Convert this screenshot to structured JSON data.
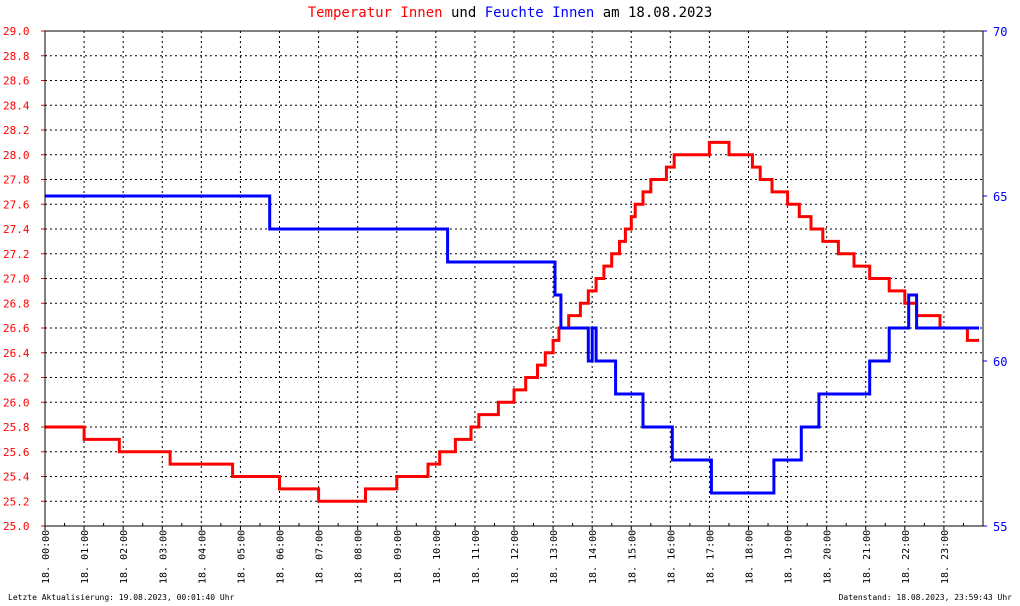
{
  "title": {
    "part1": "Temperatur Innen",
    "part2": " und ",
    "part3": "Feuchte Innen",
    "part4": " am 18.08.2023"
  },
  "footer": {
    "left": "Letzte Aktualisierung: 19.08.2023, 00:01:40 Uhr",
    "right": "Datenstand: 18.08.2023, 23:59:43 Uhr"
  },
  "colors": {
    "temperature": "#ff0000",
    "humidity": "#0000ff",
    "grid": "#000000"
  },
  "chart_data": {
    "type": "line",
    "title": "Temperatur Innen und Feuchte Innen am 18.08.2023",
    "x_tick_labels": [
      "18. 00:00",
      "18. 01:00",
      "18. 02:00",
      "18. 03:00",
      "18. 04:00",
      "18. 05:00",
      "18. 06:00",
      "18. 07:00",
      "18. 08:00",
      "18. 09:00",
      "18. 10:00",
      "18. 11:00",
      "18. 12:00",
      "18. 13:00",
      "18. 14:00",
      "18. 15:00",
      "18. 16:00",
      "18. 17:00",
      "18. 18:00",
      "18. 19:00",
      "18. 20:00",
      "18. 21:00",
      "18. 22:00",
      "18. 23:00"
    ],
    "x_range_hours": [
      0,
      24
    ],
    "y_left": {
      "range": [
        25.0,
        29.0
      ],
      "ticks": [
        "25.0",
        "25.2",
        "25.4",
        "25.6",
        "25.8",
        "26.0",
        "26.2",
        "26.4",
        "26.6",
        "26.8",
        "27.0",
        "27.2",
        "27.4",
        "27.6",
        "27.8",
        "28.0",
        "28.2",
        "28.4",
        "28.6",
        "28.8",
        "29.0"
      ]
    },
    "y_right": {
      "range": [
        55,
        70
      ],
      "ticks": [
        "55",
        "60",
        "65",
        "70"
      ]
    },
    "grid": true,
    "series": [
      {
        "name": "Temperatur Innen",
        "axis": "left",
        "color": "#ff0000",
        "points": [
          [
            0.0,
            25.8
          ],
          [
            1.0,
            25.8
          ],
          [
            1.0,
            25.7
          ],
          [
            1.9,
            25.7
          ],
          [
            1.9,
            25.6
          ],
          [
            3.2,
            25.6
          ],
          [
            3.2,
            25.5
          ],
          [
            4.8,
            25.5
          ],
          [
            4.8,
            25.4
          ],
          [
            6.0,
            25.4
          ],
          [
            6.0,
            25.3
          ],
          [
            7.0,
            25.3
          ],
          [
            7.0,
            25.2
          ],
          [
            8.2,
            25.2
          ],
          [
            8.2,
            25.3
          ],
          [
            9.0,
            25.3
          ],
          [
            9.0,
            25.4
          ],
          [
            9.8,
            25.4
          ],
          [
            9.8,
            25.5
          ],
          [
            10.1,
            25.5
          ],
          [
            10.1,
            25.6
          ],
          [
            10.5,
            25.6
          ],
          [
            10.5,
            25.7
          ],
          [
            10.9,
            25.7
          ],
          [
            10.9,
            25.8
          ],
          [
            11.1,
            25.8
          ],
          [
            11.1,
            25.9
          ],
          [
            11.6,
            25.9
          ],
          [
            11.6,
            26.0
          ],
          [
            12.0,
            26.0
          ],
          [
            12.0,
            26.1
          ],
          [
            12.3,
            26.1
          ],
          [
            12.3,
            26.2
          ],
          [
            12.6,
            26.2
          ],
          [
            12.6,
            26.3
          ],
          [
            12.8,
            26.3
          ],
          [
            12.8,
            26.4
          ],
          [
            13.0,
            26.4
          ],
          [
            13.0,
            26.5
          ],
          [
            13.15,
            26.5
          ],
          [
            13.15,
            26.6
          ],
          [
            13.4,
            26.6
          ],
          [
            13.4,
            26.7
          ],
          [
            13.7,
            26.7
          ],
          [
            13.7,
            26.8
          ],
          [
            13.9,
            26.8
          ],
          [
            13.9,
            26.9
          ],
          [
            14.1,
            26.9
          ],
          [
            14.1,
            27.0
          ],
          [
            14.3,
            27.0
          ],
          [
            14.3,
            27.1
          ],
          [
            14.5,
            27.1
          ],
          [
            14.5,
            27.2
          ],
          [
            14.7,
            27.2
          ],
          [
            14.7,
            27.3
          ],
          [
            14.85,
            27.3
          ],
          [
            14.85,
            27.4
          ],
          [
            15.0,
            27.4
          ],
          [
            15.0,
            27.5
          ],
          [
            15.1,
            27.5
          ],
          [
            15.1,
            27.6
          ],
          [
            15.3,
            27.6
          ],
          [
            15.3,
            27.7
          ],
          [
            15.5,
            27.7
          ],
          [
            15.5,
            27.8
          ],
          [
            15.9,
            27.8
          ],
          [
            15.9,
            27.9
          ],
          [
            16.1,
            27.9
          ],
          [
            16.1,
            28.0
          ],
          [
            17.0,
            28.0
          ],
          [
            17.0,
            28.1
          ],
          [
            17.5,
            28.1
          ],
          [
            17.5,
            28.0
          ],
          [
            18.1,
            28.0
          ],
          [
            18.1,
            27.9
          ],
          [
            18.3,
            27.9
          ],
          [
            18.3,
            27.8
          ],
          [
            18.6,
            27.8
          ],
          [
            18.6,
            27.7
          ],
          [
            19.0,
            27.7
          ],
          [
            19.0,
            27.6
          ],
          [
            19.3,
            27.6
          ],
          [
            19.3,
            27.5
          ],
          [
            19.6,
            27.5
          ],
          [
            19.6,
            27.4
          ],
          [
            19.9,
            27.4
          ],
          [
            19.9,
            27.3
          ],
          [
            20.3,
            27.3
          ],
          [
            20.3,
            27.2
          ],
          [
            20.7,
            27.2
          ],
          [
            20.7,
            27.1
          ],
          [
            21.1,
            27.1
          ],
          [
            21.1,
            27.0
          ],
          [
            21.6,
            27.0
          ],
          [
            21.6,
            26.9
          ],
          [
            22.0,
            26.9
          ],
          [
            22.0,
            26.8
          ],
          [
            22.3,
            26.8
          ],
          [
            22.3,
            26.7
          ],
          [
            22.9,
            26.7
          ],
          [
            22.9,
            26.6
          ],
          [
            23.6,
            26.6
          ],
          [
            23.6,
            26.5
          ],
          [
            23.9,
            26.5
          ]
        ]
      },
      {
        "name": "Feuchte Innen",
        "axis": "right",
        "color": "#0000ff",
        "points": [
          [
            0.0,
            65.0
          ],
          [
            5.75,
            65.0
          ],
          [
            5.75,
            64.0
          ],
          [
            10.3,
            64.0
          ],
          [
            10.3,
            63.0
          ],
          [
            13.05,
            63.0
          ],
          [
            13.05,
            62.0
          ],
          [
            13.2,
            62.0
          ],
          [
            13.2,
            61.0
          ],
          [
            13.9,
            61.0
          ],
          [
            13.9,
            60.0
          ],
          [
            14.0,
            60.0
          ],
          [
            14.0,
            61.0
          ],
          [
            14.1,
            61.0
          ],
          [
            14.1,
            60.0
          ],
          [
            14.6,
            60.0
          ],
          [
            14.6,
            59.0
          ],
          [
            15.3,
            59.0
          ],
          [
            15.3,
            58.0
          ],
          [
            16.05,
            58.0
          ],
          [
            16.05,
            57.0
          ],
          [
            17.05,
            57.0
          ],
          [
            17.05,
            56.0
          ],
          [
            18.65,
            56.0
          ],
          [
            18.65,
            57.0
          ],
          [
            19.35,
            57.0
          ],
          [
            19.35,
            58.0
          ],
          [
            19.8,
            58.0
          ],
          [
            19.8,
            59.0
          ],
          [
            21.1,
            59.0
          ],
          [
            21.1,
            60.0
          ],
          [
            21.6,
            60.0
          ],
          [
            21.6,
            61.0
          ],
          [
            22.1,
            61.0
          ],
          [
            22.1,
            62.0
          ],
          [
            22.3,
            62.0
          ],
          [
            22.3,
            61.0
          ],
          [
            23.9,
            61.0
          ]
        ]
      }
    ]
  }
}
